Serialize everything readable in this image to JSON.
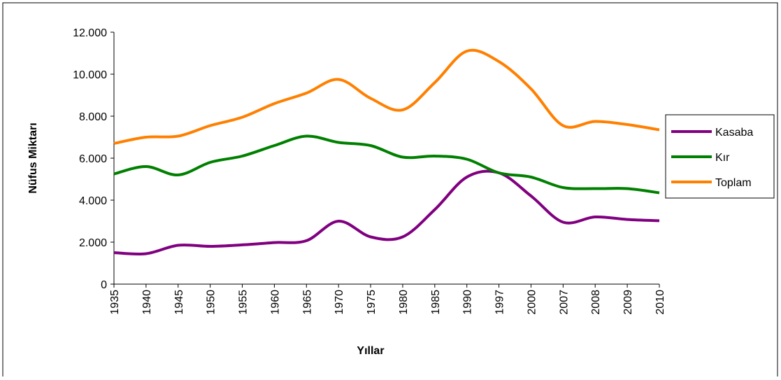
{
  "chart_data": {
    "type": "line",
    "x_label": "Yıllar",
    "y_label": "Nüfus Miktarı",
    "categories": [
      "1935",
      "1940",
      "1945",
      "1950",
      "1955",
      "1960",
      "1965",
      "1970",
      "1975",
      "1980",
      "1985",
      "1990",
      "1997",
      "2000",
      "2007",
      "2008",
      "2009",
      "2010"
    ],
    "series": [
      {
        "name": "Kasaba",
        "color": "#800080",
        "values": [
          1500,
          1450,
          1850,
          1800,
          1870,
          1980,
          2070,
          3000,
          2250,
          2250,
          3550,
          5100,
          5300,
          4200,
          2950,
          3200,
          3080,
          3020
        ]
      },
      {
        "name": "Kır",
        "color": "#008000",
        "values": [
          5250,
          5600,
          5200,
          5800,
          6100,
          6600,
          7050,
          6750,
          6600,
          6050,
          6100,
          5950,
          5300,
          5100,
          4600,
          4550,
          4550,
          4350
        ]
      },
      {
        "name": "Toplam",
        "color": "#ff8000",
        "values": [
          6700,
          7000,
          7050,
          7550,
          7950,
          8600,
          9100,
          9750,
          8850,
          8300,
          9600,
          11100,
          10600,
          9300,
          7550,
          7750,
          7600,
          7350
        ]
      }
    ],
    "ylim": [
      0,
      12000
    ],
    "yticks": [
      0,
      {
        "value": 2000,
        "label": "2.000"
      },
      {
        "value": 4000,
        "label": "4.000"
      },
      {
        "value": 6000,
        "label": "6.000"
      },
      {
        "value": 8000,
        "label": "8.000"
      },
      {
        "value": 10000,
        "label": "10.000"
      },
      {
        "value": 12000,
        "label": "12.000"
      }
    ],
    "smooth": true
  }
}
